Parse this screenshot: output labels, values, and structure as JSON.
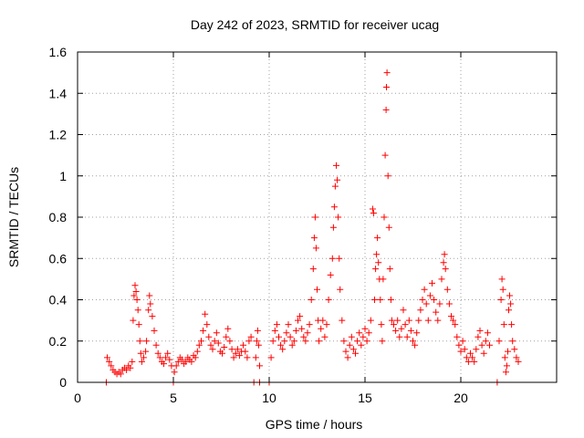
{
  "chart_data": {
    "type": "scatter",
    "title": "Day 242 of 2023, SRMTID for receiver ucag",
    "xlabel": "GPS time / hours",
    "ylabel": "SRMTID / TECUs",
    "xlim": [
      0,
      25
    ],
    "ylim": [
      0,
      1.6
    ],
    "xticks": [
      0,
      5,
      10,
      15,
      20
    ],
    "yticks": [
      0,
      0.2,
      0.4,
      0.6,
      0.8,
      1,
      1.2,
      1.4,
      1.6
    ],
    "xtick_labels": [
      "0",
      "5",
      "10",
      "15",
      "20"
    ],
    "ytick_labels": [
      "0",
      "0.2",
      "0.4",
      "0.6",
      "0.8",
      "1",
      "1.2",
      "1.4",
      "1.6"
    ],
    "grid": true,
    "marker": "+",
    "color": "#ff0000",
    "series": [
      {
        "name": "SRMTID",
        "points": [
          [
            1.5,
            0.0
          ],
          [
            1.55,
            0.12
          ],
          [
            1.65,
            0.1
          ],
          [
            1.75,
            0.08
          ],
          [
            1.85,
            0.06
          ],
          [
            1.95,
            0.05
          ],
          [
            2.05,
            0.04
          ],
          [
            2.15,
            0.05
          ],
          [
            2.25,
            0.04
          ],
          [
            2.35,
            0.06
          ],
          [
            2.45,
            0.07
          ],
          [
            2.55,
            0.06
          ],
          [
            2.65,
            0.08
          ],
          [
            2.75,
            0.07
          ],
          [
            2.85,
            0.1
          ],
          [
            2.9,
            0.3
          ],
          [
            2.95,
            0.42
          ],
          [
            3.0,
            0.47
          ],
          [
            3.05,
            0.44
          ],
          [
            3.1,
            0.4
          ],
          [
            3.15,
            0.35
          ],
          [
            3.2,
            0.28
          ],
          [
            3.25,
            0.2
          ],
          [
            3.3,
            0.14
          ],
          [
            3.35,
            0.1
          ],
          [
            3.45,
            0.12
          ],
          [
            3.55,
            0.15
          ],
          [
            3.6,
            0.2
          ],
          [
            3.7,
            0.35
          ],
          [
            3.75,
            0.42
          ],
          [
            3.8,
            0.38
          ],
          [
            3.9,
            0.32
          ],
          [
            4.0,
            0.25
          ],
          [
            4.1,
            0.18
          ],
          [
            4.2,
            0.14
          ],
          [
            4.3,
            0.12
          ],
          [
            4.4,
            0.1
          ],
          [
            4.5,
            0.09
          ],
          [
            4.6,
            0.12
          ],
          [
            4.7,
            0.14
          ],
          [
            4.8,
            0.11
          ],
          [
            4.9,
            0.08
          ],
          [
            5.0,
            0.0
          ],
          [
            5.05,
            0.05
          ],
          [
            5.15,
            0.08
          ],
          [
            5.25,
            0.1
          ],
          [
            5.35,
            0.12
          ],
          [
            5.45,
            0.11
          ],
          [
            5.55,
            0.09
          ],
          [
            5.65,
            0.1
          ],
          [
            5.75,
            0.12
          ],
          [
            5.85,
            0.11
          ],
          [
            5.95,
            0.1
          ],
          [
            6.05,
            0.13
          ],
          [
            6.15,
            0.12
          ],
          [
            6.25,
            0.15
          ],
          [
            6.35,
            0.18
          ],
          [
            6.45,
            0.2
          ],
          [
            6.55,
            0.25
          ],
          [
            6.65,
            0.33
          ],
          [
            6.75,
            0.28
          ],
          [
            6.85,
            0.22
          ],
          [
            6.95,
            0.18
          ],
          [
            7.05,
            0.16
          ],
          [
            7.15,
            0.2
          ],
          [
            7.25,
            0.24
          ],
          [
            7.35,
            0.19
          ],
          [
            7.45,
            0.15
          ],
          [
            7.55,
            0.14
          ],
          [
            7.65,
            0.17
          ],
          [
            7.75,
            0.22
          ],
          [
            7.85,
            0.26
          ],
          [
            7.95,
            0.2
          ],
          [
            8.05,
            0.16
          ],
          [
            8.15,
            0.12
          ],
          [
            8.25,
            0.14
          ],
          [
            8.35,
            0.16
          ],
          [
            8.45,
            0.13
          ],
          [
            8.55,
            0.15
          ],
          [
            8.65,
            0.18
          ],
          [
            8.75,
            0.15
          ],
          [
            8.85,
            0.12
          ],
          [
            8.95,
            0.2
          ],
          [
            9.05,
            0.22
          ],
          [
            9.2,
            0.0
          ],
          [
            9.3,
            0.12
          ],
          [
            9.35,
            0.2
          ],
          [
            9.4,
            0.25
          ],
          [
            9.45,
            0.18
          ],
          [
            9.5,
            0.08
          ],
          [
            9.5,
            0.0
          ],
          [
            10.0,
            0.0
          ],
          [
            10.1,
            0.12
          ],
          [
            10.2,
            0.2
          ],
          [
            10.3,
            0.25
          ],
          [
            10.4,
            0.28
          ],
          [
            10.5,
            0.22
          ],
          [
            10.6,
            0.18
          ],
          [
            10.7,
            0.16
          ],
          [
            10.8,
            0.2
          ],
          [
            10.9,
            0.24
          ],
          [
            11.0,
            0.28
          ],
          [
            11.1,
            0.22
          ],
          [
            11.2,
            0.18
          ],
          [
            11.3,
            0.2
          ],
          [
            11.4,
            0.25
          ],
          [
            11.5,
            0.3
          ],
          [
            11.6,
            0.32
          ],
          [
            11.7,
            0.26
          ],
          [
            11.8,
            0.22
          ],
          [
            11.9,
            0.2
          ],
          [
            12.0,
            0.24
          ],
          [
            12.1,
            0.28
          ],
          [
            12.2,
            0.4
          ],
          [
            12.3,
            0.55
          ],
          [
            12.35,
            0.7
          ],
          [
            12.4,
            0.8
          ],
          [
            12.45,
            0.65
          ],
          [
            12.5,
            0.45
          ],
          [
            12.55,
            0.3
          ],
          [
            12.6,
            0.2
          ],
          [
            12.7,
            0.26
          ],
          [
            12.8,
            0.3
          ],
          [
            12.9,
            0.22
          ],
          [
            13.0,
            0.28
          ],
          [
            13.1,
            0.4
          ],
          [
            13.2,
            0.52
          ],
          [
            13.3,
            0.6
          ],
          [
            13.35,
            0.75
          ],
          [
            13.4,
            0.85
          ],
          [
            13.45,
            0.95
          ],
          [
            13.5,
            1.05
          ],
          [
            13.55,
            0.98
          ],
          [
            13.6,
            0.8
          ],
          [
            13.65,
            0.6
          ],
          [
            13.7,
            0.45
          ],
          [
            13.8,
            0.3
          ],
          [
            13.9,
            0.2
          ],
          [
            14.0,
            0.15
          ],
          [
            14.1,
            0.12
          ],
          [
            14.2,
            0.18
          ],
          [
            14.3,
            0.22
          ],
          [
            14.4,
            0.16
          ],
          [
            14.5,
            0.14
          ],
          [
            14.6,
            0.2
          ],
          [
            14.7,
            0.24
          ],
          [
            14.8,
            0.18
          ],
          [
            14.9,
            0.22
          ],
          [
            15.0,
            0.26
          ],
          [
            15.1,
            0.2
          ],
          [
            15.2,
            0.24
          ],
          [
            15.3,
            0.3
          ],
          [
            15.4,
            0.84
          ],
          [
            15.45,
            0.82
          ],
          [
            15.5,
            0.4
          ],
          [
            15.55,
            0.55
          ],
          [
            15.6,
            0.62
          ],
          [
            15.65,
            0.7
          ],
          [
            15.7,
            0.58
          ],
          [
            15.75,
            0.5
          ],
          [
            15.8,
            0.4
          ],
          [
            15.85,
            0.28
          ],
          [
            15.9,
            0.2
          ],
          [
            15.95,
            0.5
          ],
          [
            16.0,
            0.8
          ],
          [
            16.05,
            1.1
          ],
          [
            16.1,
            1.32
          ],
          [
            16.12,
            1.43
          ],
          [
            16.15,
            1.5
          ],
          [
            16.2,
            1.0
          ],
          [
            16.25,
            0.75
          ],
          [
            16.3,
            0.55
          ],
          [
            16.35,
            0.4
          ],
          [
            16.4,
            0.3
          ],
          [
            16.5,
            0.28
          ],
          [
            16.6,
            0.25
          ],
          [
            16.7,
            0.3
          ],
          [
            16.8,
            0.22
          ],
          [
            16.9,
            0.26
          ],
          [
            17.0,
            0.35
          ],
          [
            17.1,
            0.28
          ],
          [
            17.2,
            0.22
          ],
          [
            17.3,
            0.3
          ],
          [
            17.4,
            0.25
          ],
          [
            17.5,
            0.2
          ],
          [
            17.6,
            0.18
          ],
          [
            17.7,
            0.24
          ],
          [
            17.8,
            0.3
          ],
          [
            17.9,
            0.35
          ],
          [
            18.0,
            0.4
          ],
          [
            18.1,
            0.45
          ],
          [
            18.2,
            0.38
          ],
          [
            18.3,
            0.3
          ],
          [
            18.4,
            0.42
          ],
          [
            18.5,
            0.48
          ],
          [
            18.6,
            0.4
          ],
          [
            18.7,
            0.34
          ],
          [
            18.8,
            0.3
          ],
          [
            18.9,
            0.38
          ],
          [
            19.0,
            0.5
          ],
          [
            19.1,
            0.58
          ],
          [
            19.15,
            0.62
          ],
          [
            19.2,
            0.55
          ],
          [
            19.3,
            0.45
          ],
          [
            19.4,
            0.38
          ],
          [
            19.5,
            0.32
          ],
          [
            19.6,
            0.3
          ],
          [
            19.7,
            0.28
          ],
          [
            19.8,
            0.22
          ],
          [
            19.9,
            0.18
          ],
          [
            20.0,
            0.15
          ],
          [
            20.1,
            0.2
          ],
          [
            20.2,
            0.16
          ],
          [
            20.3,
            0.12
          ],
          [
            20.4,
            0.1
          ],
          [
            20.5,
            0.14
          ],
          [
            20.6,
            0.12
          ],
          [
            20.7,
            0.1
          ],
          [
            20.8,
            0.16
          ],
          [
            20.9,
            0.22
          ],
          [
            21.0,
            0.25
          ],
          [
            21.1,
            0.18
          ],
          [
            21.2,
            0.14
          ],
          [
            21.3,
            0.2
          ],
          [
            21.4,
            0.24
          ],
          [
            21.5,
            0.18
          ],
          [
            21.9,
            0.0
          ],
          [
            22.0,
            0.2
          ],
          [
            22.1,
            0.4
          ],
          [
            22.15,
            0.5
          ],
          [
            22.2,
            0.45
          ],
          [
            22.25,
            0.28
          ],
          [
            22.3,
            0.12
          ],
          [
            22.35,
            0.05
          ],
          [
            22.4,
            0.08
          ],
          [
            22.45,
            0.15
          ],
          [
            22.5,
            0.35
          ],
          [
            22.55,
            0.42
          ],
          [
            22.6,
            0.38
          ],
          [
            22.65,
            0.28
          ],
          [
            22.7,
            0.2
          ],
          [
            22.8,
            0.16
          ],
          [
            22.9,
            0.12
          ],
          [
            23.0,
            0.1
          ]
        ]
      }
    ]
  }
}
